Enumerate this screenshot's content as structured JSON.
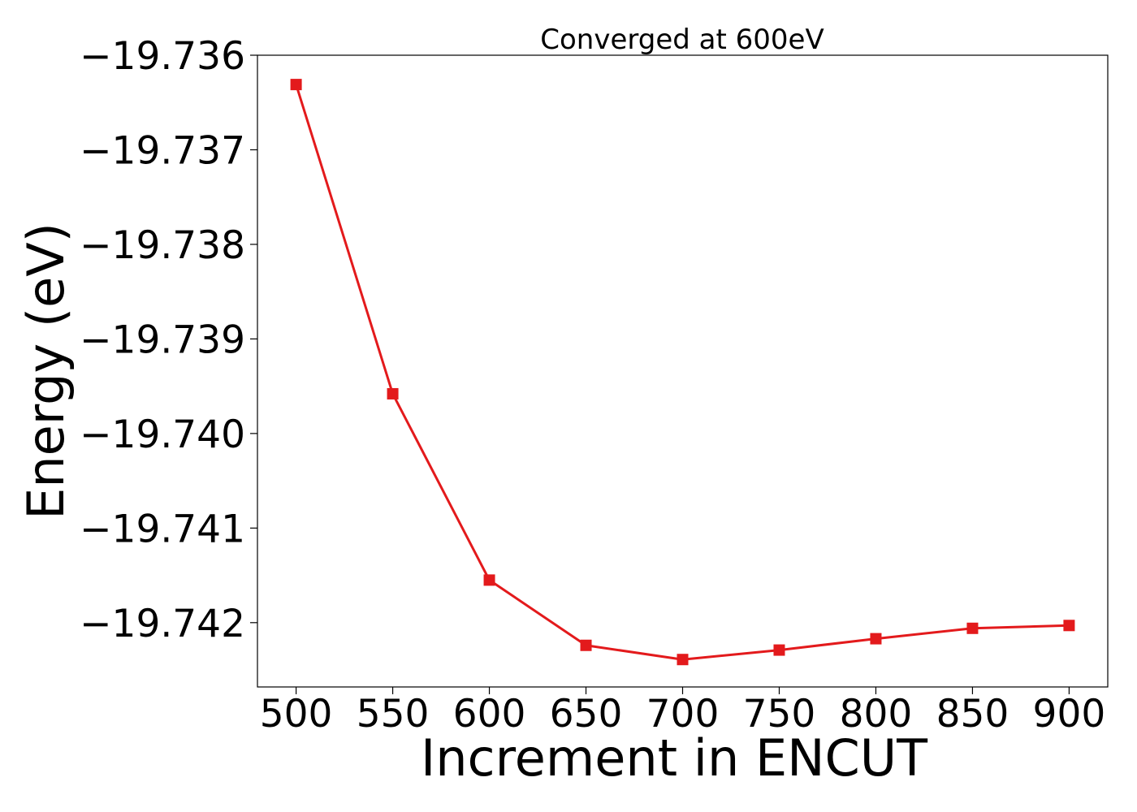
{
  "chart_data": {
    "type": "line",
    "title": "Converged at 600eV",
    "xlabel": "Increment in ENCUT",
    "ylabel": "Energy (eV)",
    "x": [
      500,
      550,
      600,
      650,
      700,
      750,
      800,
      850,
      900
    ],
    "x_ticks": [
      "500",
      "550",
      "600",
      "650",
      "700",
      "750",
      "800",
      "850",
      "900"
    ],
    "y_ticks": [
      "−19.736",
      "−19.737",
      "−19.738",
      "−19.739",
      "−19.740",
      "−19.741",
      "−19.742"
    ],
    "y_tick_values": [
      -19.736,
      -19.737,
      -19.738,
      -19.739,
      -19.74,
      -19.741,
      -19.742
    ],
    "xlim": [
      480,
      920
    ],
    "ylim": [
      -19.74268,
      -19.736
    ],
    "grid": false,
    "series": [
      {
        "color": "#e31a1c",
        "marker": "square",
        "values": [
          -19.73631,
          -19.73958,
          -19.74155,
          -19.74224,
          -19.74239,
          -19.74229,
          -19.74217,
          -19.74206,
          -19.74203
        ]
      }
    ]
  }
}
